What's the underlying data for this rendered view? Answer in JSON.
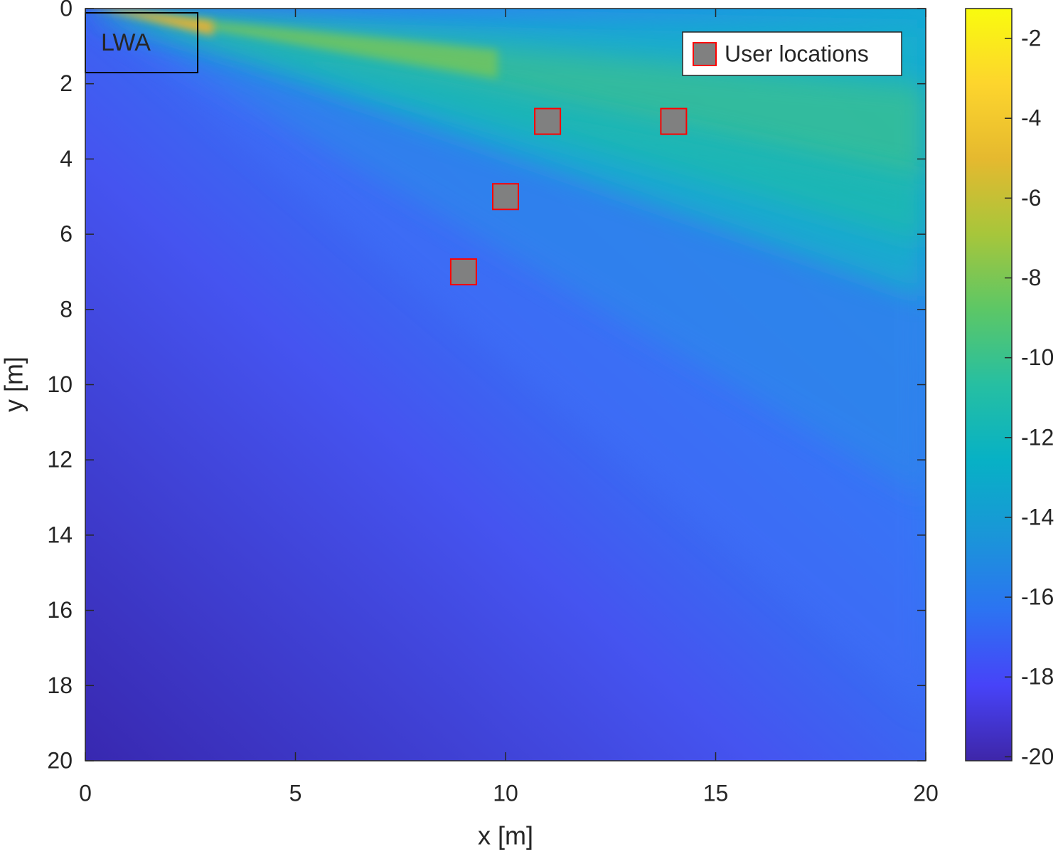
{
  "chart_data": {
    "type": "scatter",
    "xlabel": "x [m]",
    "ylabel": "y [m]",
    "xlim": [
      0,
      20
    ],
    "xticks": [
      0,
      5,
      10,
      15,
      20
    ],
    "ylim": [
      0,
      20
    ],
    "yticks": [
      0,
      2,
      4,
      6,
      8,
      10,
      12,
      14,
      16,
      18,
      20
    ],
    "y_reversed": true,
    "series": [
      {
        "name": "User locations",
        "color": "#808080",
        "edgecolor": "#ff0000",
        "x": [
          11,
          14,
          10,
          9
        ],
        "values": [
          3,
          3,
          5,
          7
        ]
      }
    ],
    "legend": "northeast",
    "annotation": "LWA",
    "colorbar": {
      "clim": [
        -20.1,
        -1.25
      ],
      "ticks": [
        -2,
        -4,
        -6,
        -8,
        -10,
        -12,
        -14,
        -16,
        -18,
        -20
      ],
      "colormap": [
        "#3e26a8",
        "#4743f8",
        "#2c73f2",
        "#1a96d8",
        "#07b1c5",
        "#26bfa2",
        "#5cc766",
        "#a7c63b",
        "#e5b92f",
        "#fdd52d",
        "#f9fb0e"
      ]
    }
  }
}
